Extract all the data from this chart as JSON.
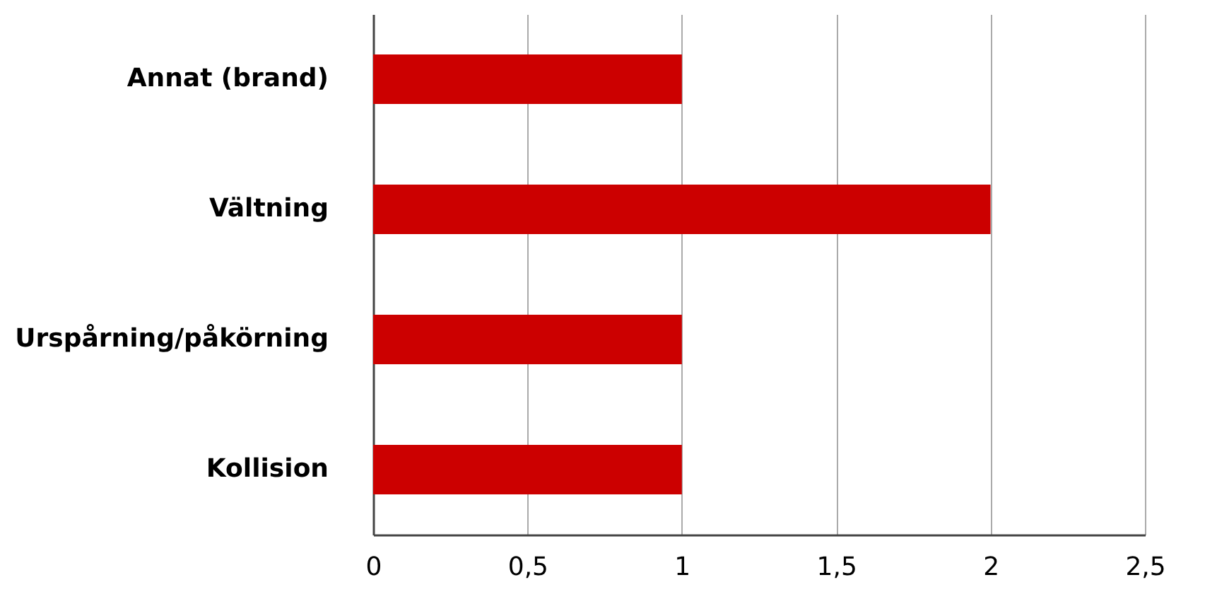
{
  "chart_data": {
    "type": "bar",
    "orientation": "horizontal",
    "categories": [
      "Annat (brand)",
      "Vältning",
      "Urspårning/påkörning",
      "Kollision"
    ],
    "values": [
      1,
      2,
      1,
      1
    ],
    "color": "#cc0000",
    "xlim": [
      0,
      2.5
    ],
    "xticks": [
      0,
      {
        "value": 0.5,
        "label": "0,5"
      },
      1,
      {
        "value": 1.5,
        "label": "1,5"
      },
      2,
      {
        "value": 2.5,
        "label": "2,5"
      }
    ],
    "grid": "x"
  }
}
